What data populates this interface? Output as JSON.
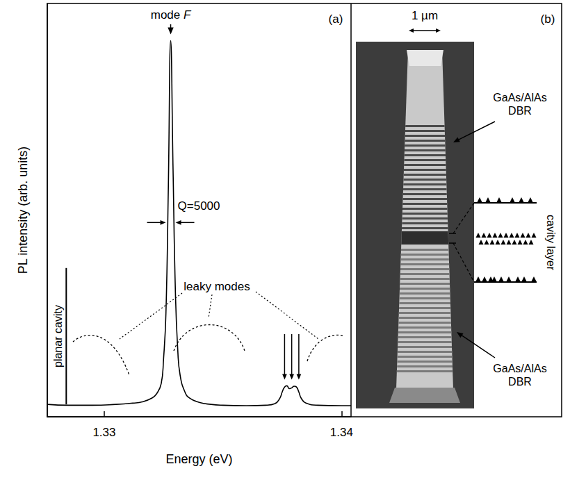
{
  "chart_data": {
    "type": "line",
    "x_label": "Energy (eV)",
    "y_label": "PL intensity (arb. units)",
    "x": [
      1.3276,
      1.3285,
      1.3295,
      1.3305,
      1.3312,
      1.3316,
      1.332,
      1.3322,
      1.3324,
      1.3325,
      1.3326,
      1.3327,
      1.3328,
      1.3329,
      1.333,
      1.3331,
      1.3332,
      1.3334,
      1.3336,
      1.334,
      1.3345,
      1.335,
      1.336,
      1.3368,
      1.3372,
      1.3374,
      1.3375,
      1.3376,
      1.3377,
      1.3378,
      1.3379,
      1.338,
      1.3381,
      1.3382,
      1.3383,
      1.3385,
      1.339,
      1.34,
      1.3404
    ],
    "values": [
      0.03,
      0.028,
      0.028,
      0.03,
      0.033,
      0.036,
      0.045,
      0.055,
      0.08,
      0.14,
      0.25,
      0.55,
      0.91,
      0.6,
      0.3,
      0.16,
      0.1,
      0.06,
      0.045,
      0.035,
      0.03,
      0.028,
      0.027,
      0.028,
      0.032,
      0.045,
      0.06,
      0.072,
      0.075,
      0.068,
      0.07,
      0.074,
      0.072,
      0.06,
      0.045,
      0.033,
      0.028,
      0.027,
      0.027
    ],
    "color": "#000000",
    "marker": "none",
    "xlim": [
      1.3276,
      1.3404
    ],
    "xticks": [
      1.33,
      1.34
    ],
    "ylim": [
      0,
      1
    ],
    "tick_labels": "x",
    "grid": false,
    "annotations": {
      "panel_label": "(a)",
      "peak_label": {
        "text": "mode F",
        "x": 1.3328
      },
      "q_label": "Q=5000",
      "leaky_label": "leaky modes",
      "planar_label": {
        "text": "planar cavity",
        "x": 1.3284,
        "y": [
          0.03,
          0.36
        ]
      },
      "mode_arrows": [
        1.3376,
        1.3379,
        1.3382
      ]
    }
  },
  "panel_b": {
    "panel_label": "(b)",
    "scale_bar": "1 µm",
    "dbr_top": "GaAs/AlAs DBR",
    "dbr_bottom": "GaAs/AlAs DBR",
    "cavity": "cavity layer"
  }
}
